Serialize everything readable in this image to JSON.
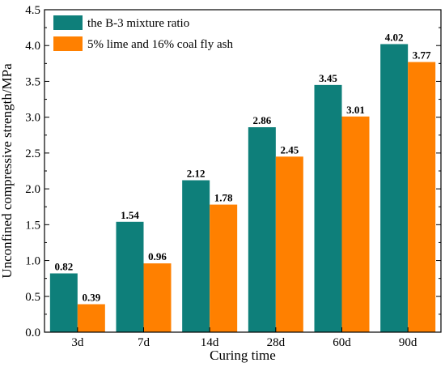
{
  "chart_data": {
    "type": "bar",
    "title": "",
    "xlabel": "Curing time",
    "ylabel": "Unconfined compressive strength/MPa",
    "categories": [
      "3d",
      "7d",
      "14d",
      "28d",
      "60d",
      "90d"
    ],
    "ylim": [
      0,
      4.5
    ],
    "yticks": [
      "0.0",
      "0.5",
      "1.0",
      "1.5",
      "2.0",
      "2.5",
      "3.0",
      "3.5",
      "4.0",
      "4.5"
    ],
    "grid": false,
    "legend_position": "top-left",
    "series": [
      {
        "name": "the B-3 mixture ratio",
        "color": "#0e7f7a",
        "values": [
          0.82,
          1.54,
          2.12,
          2.86,
          3.45,
          4.02
        ],
        "labels": [
          "0.82",
          "1.54",
          "2.12",
          "2.86",
          "3.45",
          "4.02"
        ]
      },
      {
        "name": "5% lime and 16% coal fly ash",
        "color": "#ff8000",
        "values": [
          0.39,
          0.96,
          1.78,
          2.45,
          3.01,
          3.77
        ],
        "labels": [
          "0.39",
          "0.96",
          "1.78",
          "2.45",
          "3.01",
          "3.77"
        ]
      }
    ]
  }
}
